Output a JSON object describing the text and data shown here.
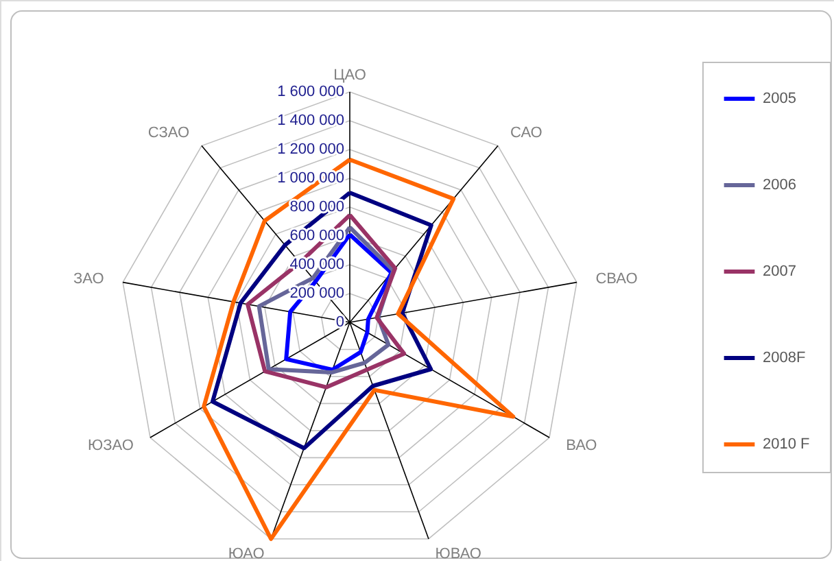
{
  "chart_data": {
    "type": "radar",
    "categories": [
      "ЦАО",
      "САО",
      "СВАО",
      "ВАО",
      "ЮВАО",
      "ЮАО",
      "ЮЗАО",
      "ЗАО",
      "СЗАО"
    ],
    "series": [
      {
        "name": "2005",
        "color": "#0000ff",
        "values": [
          610000,
          450000,
          130000,
          140000,
          220000,
          350000,
          510000,
          420000,
          370000
        ]
      },
      {
        "name": "2006",
        "color": "#666699",
        "values": [
          660000,
          470000,
          200000,
          310000,
          300000,
          370000,
          650000,
          640000,
          400000
        ]
      },
      {
        "name": "2007",
        "color": "#993366",
        "values": [
          745000,
          490000,
          190000,
          435000,
          350000,
          480000,
          680000,
          720000,
          540000
        ]
      },
      {
        "name": "2008F",
        "color": "#000080",
        "values": [
          900000,
          880000,
          370000,
          650000,
          470000,
          930000,
          1100000,
          770000,
          700000
        ]
      },
      {
        "name": "2010 F",
        "color": "#ff6600",
        "values": [
          1130000,
          1120000,
          340000,
          1310000,
          500000,
          1600000,
          1170000,
          820000,
          920000
        ]
      }
    ],
    "ylim": [
      0,
      1600000
    ],
    "yticks": [
      0,
      {
        "value": 200000,
        "label": "200 000"
      },
      {
        "value": 400000,
        "label": "400 000"
      },
      {
        "value": 600000,
        "label": "600 000"
      },
      {
        "value": 800000,
        "label": "800 000"
      },
      {
        "value": 1000000,
        "label": "1 000 000"
      },
      {
        "value": 1200000,
        "label": "1 200 000"
      },
      {
        "value": 1400000,
        "label": "1 400 000"
      },
      {
        "value": 1600000,
        "label": "1 600 000"
      }
    ],
    "grid": true,
    "legend": "right",
    "marker": "none",
    "line_style": "solid"
  }
}
